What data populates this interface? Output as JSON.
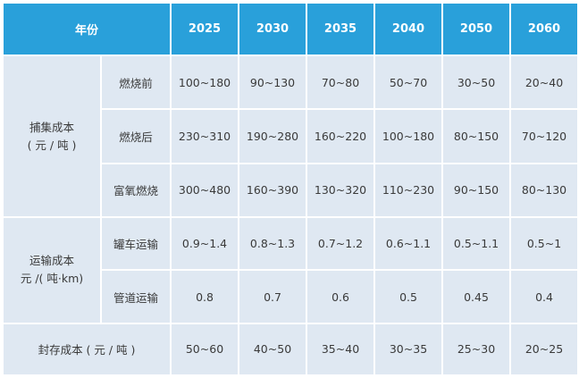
{
  "header": {
    "year_label": "年份",
    "years": [
      "2025",
      "2030",
      "2035",
      "2040",
      "2050",
      "2060"
    ]
  },
  "groups": {
    "capture": {
      "line1": "捕集成本",
      "line2": "( 元 / 吨 )"
    },
    "transport": {
      "line1": "运输成本",
      "line2": "元 /( 吨·km)"
    },
    "storage": {
      "label": "封存成本 ( 元 / 吨 )"
    }
  },
  "rows": [
    {
      "sub": "燃烧前",
      "values": [
        "100~180",
        "90~130",
        "70~80",
        "50~70",
        "30~50",
        "20~40"
      ]
    },
    {
      "sub": "燃烧后",
      "values": [
        "230~310",
        "190~280",
        "160~220",
        "100~180",
        "80~150",
        "70~120"
      ]
    },
    {
      "sub": "富氧燃烧",
      "values": [
        "300~480",
        "160~390",
        "130~320",
        "110~230",
        "90~150",
        "80~130"
      ]
    },
    {
      "sub": "罐车运输",
      "values": [
        "0.9~1.4",
        "0.8~1.3",
        "0.7~1.2",
        "0.6~1.1",
        "0.5~1.1",
        "0.5~1"
      ]
    },
    {
      "sub": "管道运输",
      "values": [
        "0.8",
        "0.7",
        "0.6",
        "0.5",
        "0.45",
        "0.4"
      ]
    },
    {
      "sub": "",
      "values": [
        "50~60",
        "40~50",
        "35~40",
        "30~35",
        "25~30",
        "20~25"
      ]
    }
  ]
}
